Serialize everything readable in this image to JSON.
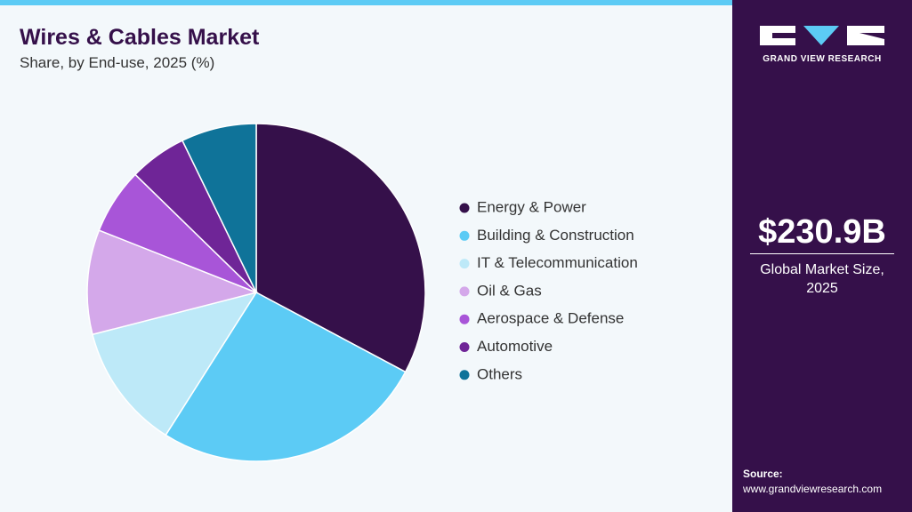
{
  "chart_data": {
    "type": "pie",
    "title": "Wires & Cables Market",
    "subtitle": "Share, by End-use, 2025 (%)",
    "categories": [
      "Energy & Power",
      "Building & Construction",
      "IT & Telecommunication",
      "Oil & Gas",
      "Aerospace & Defense",
      "Automotive",
      "Others"
    ],
    "values": [
      32.8,
      26.2,
      12,
      10,
      6.3,
      5.5,
      7.2
    ],
    "colors": [
      "#35104a",
      "#5ccbf5",
      "#bde9f8",
      "#d4a8ea",
      "#a855d8",
      "#6f2597",
      "#0f7399"
    ]
  },
  "sidebar": {
    "brand": "GRAND VIEW RESEARCH",
    "market_size": "$230.9B",
    "market_size_label": "Global Market Size, 2025",
    "source_label": "Source:",
    "source_url": "www.grandviewresearch.com"
  }
}
